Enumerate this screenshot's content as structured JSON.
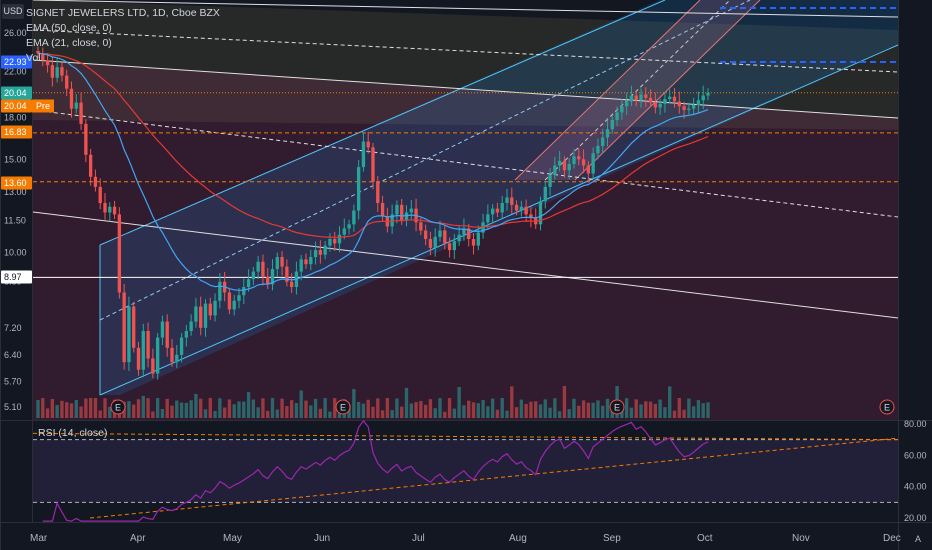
{
  "legend": {
    "title": "SIGNET JEWELERS LTD, 1D, Cboe BZX",
    "ema50": "EMA (50, close, 0)",
    "ema21": "EMA (21, close, 0)",
    "vol": "Vol"
  },
  "currency": "USD",
  "rsi_label": "RSI (14, close)",
  "corner": "A",
  "colors": {
    "background": "#131722",
    "up": "#26a69a",
    "down": "#ef5350",
    "ema50": "#e53935",
    "ema21": "#42a5f5",
    "rsi": "#9c27b0",
    "channel_fill": "#1e88e5",
    "pitchfork_fill": "#f48fb1"
  },
  "price_labels": [
    {
      "text": "22.93",
      "color": "#2962ff"
    },
    {
      "text": "20.04",
      "color": "#26a69a"
    },
    {
      "text": "20.04",
      "color": "#f57c00",
      "suffix": "Pre"
    },
    {
      "text": "16.83",
      "color": "#f57c00"
    },
    {
      "text": "13.60",
      "color": "#f57c00"
    },
    {
      "text": "8.97",
      "color": "#ffffff"
    }
  ],
  "earnings_marker": "E",
  "chart_data": [
    {
      "type": "candlestick",
      "title": "SIGNET JEWELERS LTD, 1D, Cboe BZX",
      "y_scale": "log",
      "y_ticks": [
        26.0,
        22.0,
        18.0,
        15.0,
        13.0,
        11.5,
        10.0,
        8.8,
        7.2,
        6.4,
        5.7,
        5.1
      ],
      "x_ticks": [
        "Mar",
        "Apr",
        "May",
        "Jun",
        "Jul",
        "Aug",
        "Sep",
        "Oct",
        "Nov",
        "Dec"
      ],
      "last_price": 20.04,
      "earnings_dates": [
        "2020-03-26",
        "2020-06-09",
        "2020-09-10",
        "2020-12-03"
      ],
      "candles_close": [
        23.8,
        23.1,
        22.6,
        21.4,
        22.4,
        21.6,
        20.4,
        18.7,
        19.2,
        17.5,
        15.3,
        13.9,
        13.3,
        12.4,
        11.9,
        12.2,
        11.8,
        8.4,
        6.2,
        7.9,
        6.6,
        6.0,
        7.1,
        6.3,
        5.9,
        6.9,
        7.4,
        6.6,
        6.2,
        6.4,
        6.9,
        7.1,
        7.4,
        7.9,
        7.2,
        8.0,
        7.6,
        8.1,
        8.8,
        8.4,
        7.8,
        8.1,
        8.3,
        8.6,
        8.9,
        9.2,
        9.6,
        9.0,
        8.7,
        9.3,
        9.8,
        9.4,
        8.8,
        8.6,
        9.2,
        9.7,
        9.5,
        9.8,
        10.1,
        9.9,
        10.3,
        10.6,
        10.4,
        10.8,
        11.1,
        11.3,
        12.0,
        14.5,
        16.2,
        15.8,
        13.6,
        12.4,
        11.7,
        11.2,
        11.8,
        12.3,
        11.5,
        11.9,
        12.1,
        11.4,
        11.0,
        10.6,
        10.2,
        10.7,
        11.0,
        10.4,
        10.1,
        10.5,
        10.8,
        11.1,
        10.6,
        10.3,
        10.9,
        11.4,
        11.8,
        12.1,
        11.9,
        12.4,
        12.7,
        12.3,
        12.0,
        12.2,
        11.8,
        11.6,
        11.3,
        12.5,
        13.3,
        14.0,
        14.6,
        14.9,
        14.3,
        14.7,
        15.2,
        15.0,
        14.6,
        14.1,
        15.4,
        15.9,
        16.5,
        17.1,
        17.8,
        18.4,
        18.9,
        19.3,
        19.8,
        19.4,
        19.9,
        19.6,
        19.2,
        18.8,
        19.1,
        19.5,
        19.7,
        19.3,
        18.9,
        18.6,
        18.7,
        19.0,
        19.4,
        19.8,
        20.04
      ],
      "volume": "relative bars, colored by candle direction",
      "series": [
        {
          "name": "EMA (50, close, 0)",
          "color": "#e53935"
        },
        {
          "name": "EMA (21, close, 0)",
          "color": "#42a5f5"
        }
      ]
    },
    {
      "type": "line",
      "title": "RSI (14, close)",
      "y_ticks": [
        80.0,
        60.0,
        40.0,
        20.0
      ],
      "ylim": [
        15,
        85
      ],
      "bands": [
        30,
        70
      ]
    }
  ]
}
